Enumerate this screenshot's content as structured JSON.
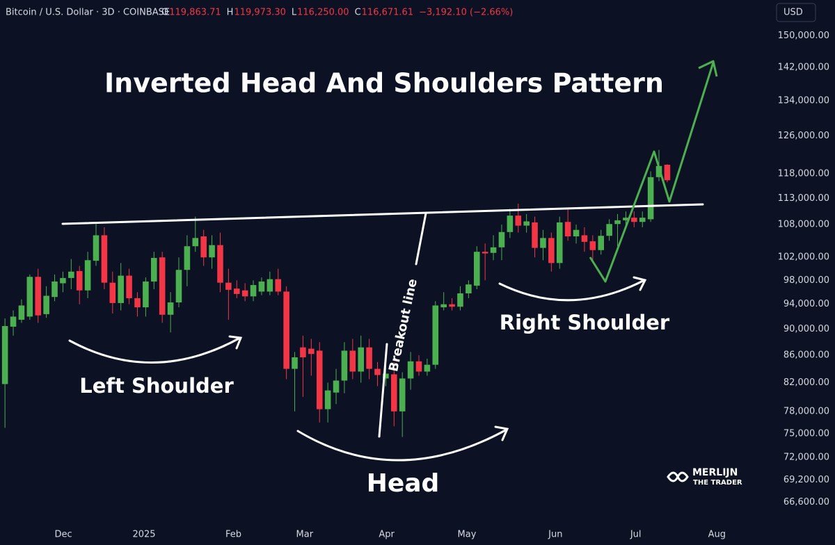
{
  "header": {
    "symbol": "Bitcoin / U.S. Dollar · 3D · COINBASE",
    "ohlc": [
      {
        "label": "O",
        "value": "119,863.71"
      },
      {
        "label": "H",
        "value": "119,973.30"
      },
      {
        "label": "L",
        "value": "116,250.00"
      },
      {
        "label": "C",
        "value": "116,671.61"
      }
    ],
    "change": "−3,192.10 (−2.66%)",
    "currency": "USD"
  },
  "logo": {
    "line1": "MERLIJN",
    "line2": "THE TRADER"
  },
  "chart_data": {
    "type": "candlestick",
    "title": "Inverted Head And Shoulders Pattern",
    "annotations": {
      "left": "Left Shoulder",
      "head": "Head",
      "right": "Right Shoulder",
      "breakout": "Breakout line"
    },
    "up_color": "#4caf50",
    "down_color": "#f23645",
    "log_scale": true,
    "open": [
      81800,
      90400,
      91500,
      92000,
      98600,
      92400,
      95200,
      97500,
      98400,
      99600,
      96300,
      101400,
      106000,
      97600,
      94200,
      98800,
      95000,
      93500,
      97800,
      102000,
      92300,
      94300,
      99800,
      104000,
      105800,
      102000,
      104200,
      97600,
      96600,
      96300,
      95300,
      96100,
      96100,
      98200,
      96100,
      84000,
      87200,
      87000,
      86700,
      78300,
      80600,
      82300,
      86700,
      83600,
      87200,
      84000,
      82600,
      83200,
      78000,
      82600,
      85100,
      83600,
      84600,
      93500,
      94000,
      93600,
      95800,
      97100,
      103000,
      102800,
      103800,
      106600,
      109700,
      107800,
      108400,
      103700,
      105500,
      101000,
      108500,
      105800,
      106000,
      104900,
      103300,
      105900,
      108100,
      108800,
      109300,
      108500,
      109000,
      117300,
      119863.71
    ],
    "high": [
      91700,
      93000,
      94800,
      99000,
      100000,
      97000,
      99000,
      99500,
      101700,
      100500,
      103000,
      108500,
      107500,
      99500,
      101000,
      100000,
      96000,
      98500,
      103000,
      103000,
      96000,
      102000,
      106000,
      109500,
      107000,
      106000,
      106500,
      100000,
      98000,
      97500,
      98000,
      98500,
      99500,
      100000,
      97000,
      86500,
      89000,
      88500,
      88000,
      82000,
      84000,
      88000,
      88500,
      89000,
      88500,
      85000,
      84500,
      85000,
      83500,
      86500,
      86000,
      85500,
      94500,
      96000,
      95000,
      97000,
      98000,
      104000,
      104500,
      106000,
      108000,
      111000,
      112000,
      110000,
      109500,
      107000,
      106500,
      109500,
      111000,
      108000,
      107500,
      106000,
      107000,
      109000,
      110000,
      110500,
      110500,
      110500,
      118500,
      123000,
      119973.3
    ],
    "low": [
      75800,
      89000,
      91000,
      91500,
      91000,
      91800,
      94500,
      96000,
      96500,
      94000,
      95000,
      100500,
      96500,
      92500,
      93000,
      94000,
      92000,
      92000,
      96500,
      91000,
      89500,
      93500,
      97000,
      103000,
      100500,
      100000,
      96000,
      91500,
      95000,
      94500,
      94500,
      95500,
      95500,
      95500,
      82500,
      78000,
      80000,
      83000,
      76500,
      76500,
      79000,
      80500,
      82500,
      82000,
      82500,
      81500,
      81500,
      76000,
      74600,
      81000,
      83000,
      83000,
      84000,
      93000,
      93000,
      93000,
      95000,
      96500,
      98000,
      101500,
      101500,
      105500,
      106500,
      106500,
      102000,
      101500,
      99500,
      100000,
      105000,
      104500,
      103000,
      101000,
      102500,
      105000,
      104000,
      107500,
      107500,
      107500,
      108500,
      116500,
      116250
    ],
    "close": [
      90500,
      92000,
      93800,
      98600,
      92200,
      95400,
      97800,
      98400,
      99500,
      96300,
      101500,
      106000,
      97600,
      94200,
      98800,
      95000,
      93500,
      97800,
      101900,
      92300,
      94300,
      99800,
      104000,
      105500,
      102000,
      104200,
      97600,
      96400,
      95700,
      95300,
      97200,
      97800,
      98200,
      96100,
      84000,
      85700,
      85700,
      86200,
      78300,
      80900,
      82300,
      86700,
      83600,
      87200,
      84000,
      83100,
      83300,
      78000,
      82600,
      85100,
      83600,
      84600,
      93800,
      94000,
      93600,
      95800,
      97300,
      103000,
      102700,
      103800,
      106600,
      109700,
      107800,
      108600,
      103700,
      105500,
      101000,
      108400,
      105800,
      107000,
      104800,
      103300,
      105900,
      108100,
      108800,
      109300,
      108500,
      109300,
      117300,
      119600,
      116671.61
    ],
    "xlim": [
      -0.6,
      92.7
    ],
    "xticks": [
      {
        "value": 7.06,
        "label": "Dec"
      },
      {
        "value": 16.8,
        "label": "2025"
      },
      {
        "value": 27.6,
        "label": "Feb"
      },
      {
        "value": 36.2,
        "label": "Mar"
      },
      {
        "value": 46.1,
        "label": "Apr"
      },
      {
        "value": 55.8,
        "label": "May"
      },
      {
        "value": 66.5,
        "label": "Jun"
      },
      {
        "value": 76.2,
        "label": "Jul"
      },
      {
        "value": 86.0,
        "label": "Aug"
      }
    ],
    "ylim": [
      64400,
      159700
    ],
    "yticks": [
      {
        "value": 150000,
        "label": "150,000.00"
      },
      {
        "value": 142000,
        "label": "142,000.00"
      },
      {
        "value": 134000,
        "label": "134,000.00"
      },
      {
        "value": 126000,
        "label": "126,000.00"
      },
      {
        "value": 118000,
        "label": "118,000.00"
      },
      {
        "value": 113000,
        "label": "113,000.00"
      },
      {
        "value": 108000,
        "label": "108,000.00"
      },
      {
        "value": 102000,
        "label": "102,000.00"
      },
      {
        "value": 98000,
        "label": "98,000.00"
      },
      {
        "value": 94000,
        "label": "94,000.00"
      },
      {
        "value": 90000,
        "label": "90,000.00"
      },
      {
        "value": 86000,
        "label": "86,000.00"
      },
      {
        "value": 82000,
        "label": "82,000.00"
      },
      {
        "value": 78000,
        "label": "78,000.00"
      },
      {
        "value": 75000,
        "label": "75,000.00"
      },
      {
        "value": 72000,
        "label": "72,000.00"
      },
      {
        "value": 69200,
        "label": "69,200.00"
      },
      {
        "value": 66600,
        "label": "66,600.00"
      }
    ]
  }
}
